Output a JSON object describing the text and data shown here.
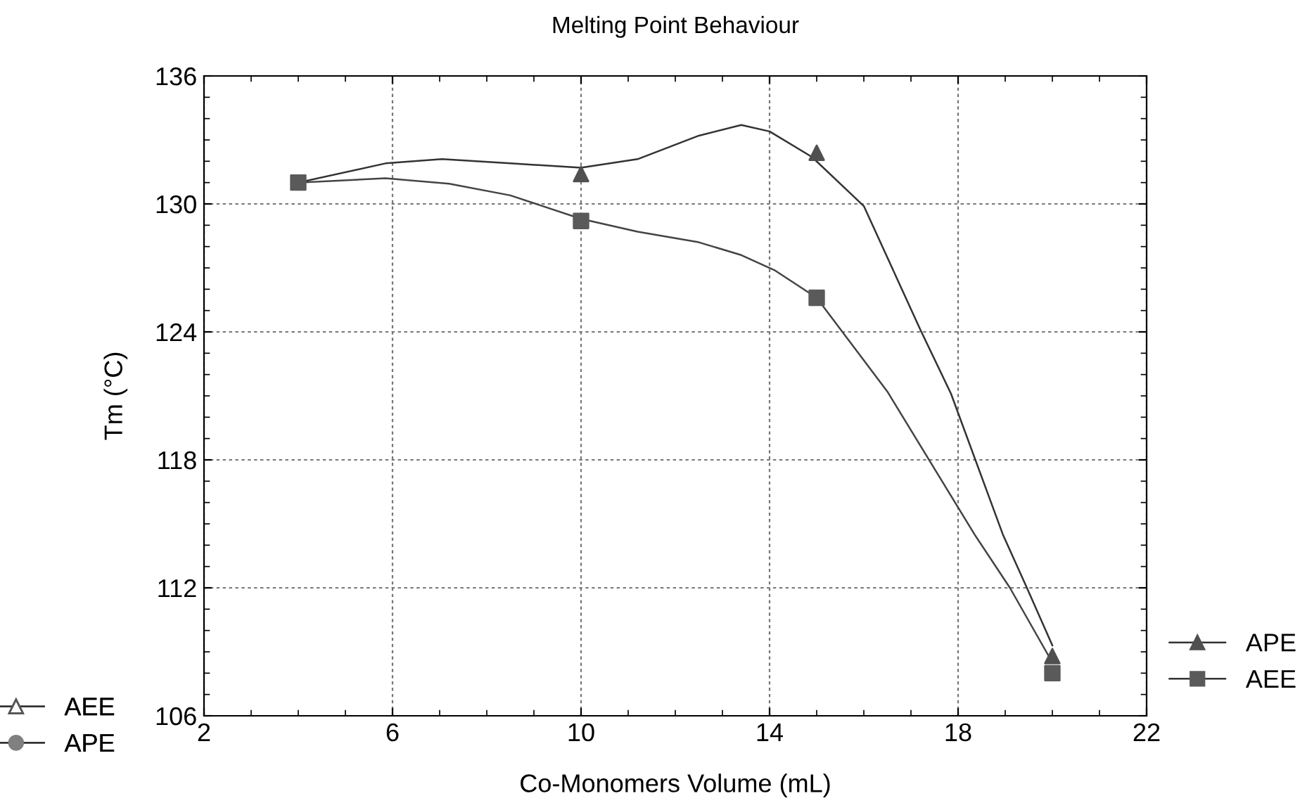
{
  "chart_data": {
    "type": "line",
    "title": "Melting Point Behaviour",
    "xlabel": "Co-Monomers Volume (mL)",
    "ylabel": "Tm (°C)",
    "x": [
      4,
      10,
      15,
      20
    ],
    "series": [
      {
        "name": "APE",
        "type": "scatter",
        "color": "#505050",
        "marker": "triangle",
        "values": [
          null,
          131.4,
          132.4,
          108.8
        ]
      },
      {
        "name": "AEE",
        "type": "scatter",
        "color": "#5a5a5a",
        "marker": "square",
        "values": [
          131.0,
          129.2,
          125.6,
          108.0
        ]
      },
      {
        "type": "line",
        "color": "#333333",
        "x": [
          4,
          5.85,
          7.05,
          8.5,
          10,
          11.2,
          12.5,
          13.4,
          14.0,
          14.9,
          16.0,
          17.2,
          17.85,
          18.95,
          19.46,
          20
        ],
        "values": [
          131.0,
          131.9,
          132.1,
          131.9,
          131.7,
          132.1,
          133.2,
          133.7,
          133.4,
          132.2,
          129.9,
          124.1,
          121.1,
          114.5,
          112.0,
          109.3
        ]
      },
      {
        "type": "line",
        "color": "#444444",
        "x": [
          4,
          5.85,
          7.2,
          8.5,
          10,
          11.2,
          12.5,
          13.4,
          14.1,
          15,
          16.5,
          18.35,
          19.1,
          20
        ],
        "values": [
          131.0,
          131.2,
          130.95,
          130.4,
          129.3,
          128.7,
          128.2,
          127.6,
          126.9,
          125.6,
          121.2,
          114.5,
          112.0,
          108.5
        ]
      },
      {
        "name": "AEE",
        "color": "#ffffff",
        "marker": "triangle",
        "values": [
          null,
          null,
          null,
          null
        ]
      },
      {
        "name": "APE",
        "color": "#808080",
        "marker": "circle",
        "values": [
          null,
          null,
          null,
          null
        ]
      }
    ],
    "xlim": [
      2,
      22
    ],
    "xticks": [
      2,
      6,
      10,
      14,
      18,
      22
    ],
    "ylim": [
      106,
      136
    ],
    "yticks": [
      106,
      112,
      118,
      124,
      130,
      136
    ],
    "grid": true,
    "legend": [
      "bottom right",
      "bottom left"
    ],
    "line_style": "solid"
  }
}
